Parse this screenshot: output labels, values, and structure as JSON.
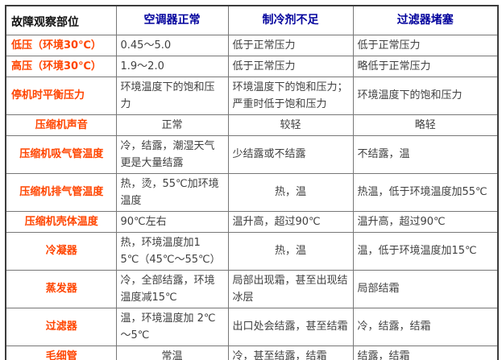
{
  "table": {
    "header": {
      "corner": "故障观察部位",
      "columns": [
        "空调器正常",
        "制冷剂不足",
        "过滤器堵塞"
      ]
    },
    "rows": [
      {
        "label": "低压（环境30℃）",
        "label_align": "left",
        "cells": [
          "0.45～5.0",
          "低于正常压力",
          "低于正常压力"
        ],
        "cell_aligns": [
          "left",
          "left",
          "left"
        ]
      },
      {
        "label": "高压（环境30℃）",
        "label_align": "left",
        "cells": [
          "1.9～2.0",
          "低于正常压力",
          "略低于正常压力"
        ],
        "cell_aligns": [
          "left",
          "left",
          "left"
        ]
      },
      {
        "label": "停机时平衡压力",
        "label_align": "left",
        "cells": [
          "环境温度下的饱和压力",
          "环境温度下的饱和压力；严重时低于饱和压力",
          "环境温度下的饱和压力"
        ],
        "cell_aligns": [
          "left",
          "left",
          "left"
        ]
      },
      {
        "label": "压缩机声音",
        "label_align": "center",
        "cells": [
          "正常",
          "较轻",
          "略轻"
        ],
        "cell_aligns": [
          "center",
          "center",
          "center"
        ]
      },
      {
        "label": "压缩机吸气管温度",
        "label_align": "center",
        "cells": [
          "冷，结露，潮湿天气更是大量结露",
          "少结露或不结露",
          "不结露，温"
        ],
        "cell_aligns": [
          "left",
          "left",
          "left"
        ]
      },
      {
        "label": "压缩机排气管温度",
        "label_align": "center",
        "cells": [
          "热，烫，55℃加环境温度",
          "热，温",
          "热温，低于环境温度加55℃"
        ],
        "cell_aligns": [
          "left",
          "center",
          "left"
        ]
      },
      {
        "label": "压缩机壳体温度",
        "label_align": "center",
        "cells": [
          "90℃左右",
          "温升高，超过90℃",
          "温升高，超过90℃"
        ],
        "cell_aligns": [
          "left",
          "left",
          "left"
        ]
      },
      {
        "label": "冷凝器",
        "label_align": "center",
        "cells": [
          "热，环境温度加15℃（45℃～55℃）",
          "热，温",
          "温，低于环境温度加15℃"
        ],
        "cell_aligns": [
          "left",
          "center",
          "left"
        ]
      },
      {
        "label": "蒸发器",
        "label_align": "center",
        "cells": [
          "冷，全部结露，环境温度减15℃",
          "局部出现霜，甚至出现结冰层",
          "局部结霜"
        ],
        "cell_aligns": [
          "left",
          "left",
          "left"
        ]
      },
      {
        "label": "过滤器",
        "label_align": "center",
        "cells": [
          "温，环境温度加 2℃～5℃",
          "出口处会结露，甚至结霜",
          "冷，结露，结霜"
        ],
        "cell_aligns": [
          "left",
          "left",
          "left"
        ]
      },
      {
        "label": "毛细管",
        "label_align": "center",
        "cells": [
          "常温",
          "冷，甚至结露，结霜",
          "结露，结霜"
        ],
        "cell_aligns": [
          "center",
          "left",
          "left"
        ]
      }
    ]
  },
  "colors": {
    "header_text": "#00009c",
    "label_text": "#ff4500",
    "body_text": "#3f3f3f",
    "corner_text": "#111111",
    "inner_border": "#777777",
    "outer_border": "#3c3c3c",
    "page_bg": "#ffffff"
  }
}
